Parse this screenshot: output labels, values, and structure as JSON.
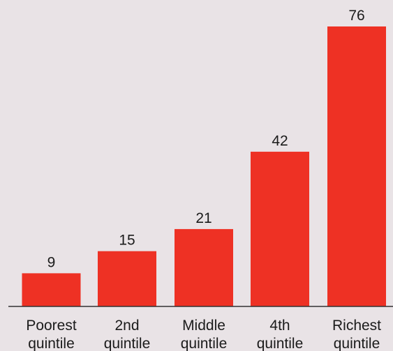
{
  "chart_data": {
    "type": "bar",
    "categories": [
      [
        "Poorest",
        "quintile"
      ],
      [
        "2nd",
        "quintile"
      ],
      [
        "Middle",
        "quintile"
      ],
      [
        "4th",
        "quintile"
      ],
      [
        "Richest",
        "quintile"
      ]
    ],
    "values": [
      9,
      15,
      21,
      42,
      76
    ],
    "value_labels": [
      "9",
      "15",
      "21",
      "42",
      "76"
    ],
    "title": "",
    "xlabel": "",
    "ylabel": "",
    "ylim": [
      0,
      80
    ],
    "grid": false,
    "legend": "none"
  },
  "colors": {
    "bar": "#ee3124",
    "background": "#e9e3e6",
    "axis": "#333333",
    "text": "#1b1b1b"
  }
}
